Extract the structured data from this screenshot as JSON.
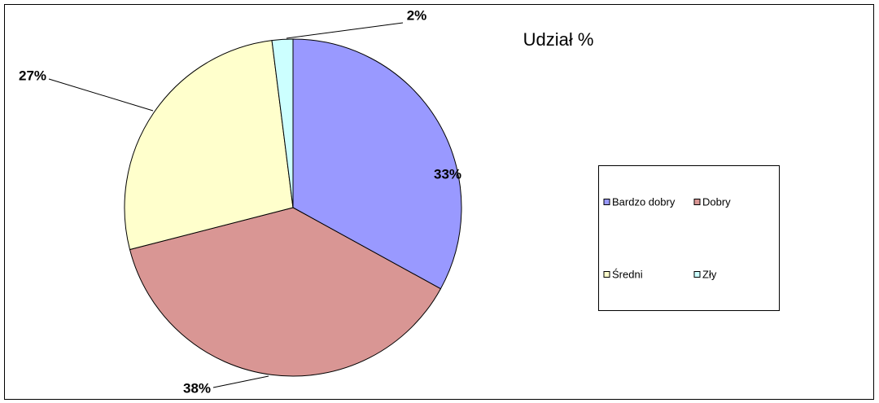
{
  "chart_data": {
    "type": "pie",
    "title": "Udział %",
    "categories": [
      "Bardzo dobry",
      "Dobry",
      "Średni",
      "Zły"
    ],
    "values": [
      33,
      38,
      27,
      2
    ],
    "value_labels": [
      "33%",
      "38%",
      "27%",
      "2%"
    ],
    "colors": [
      "#9999ff",
      "#d99694",
      "#ffffcc",
      "#ccffff"
    ],
    "legend": "right"
  }
}
